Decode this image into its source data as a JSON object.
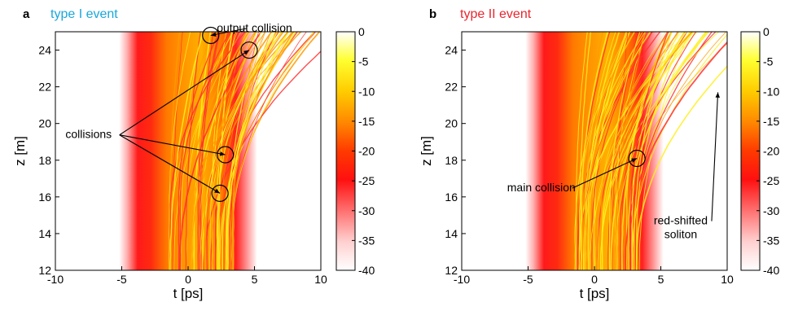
{
  "chart_data": [
    {
      "type": "heatmap",
      "panel_label": "a",
      "title": "type I event",
      "title_color": "#1aa7d9",
      "xlabel": "t [ps]",
      "ylabel": "z [m]",
      "xlim": [
        -10,
        10
      ],
      "ylim": [
        12,
        25
      ],
      "xticks": [
        -10,
        -5,
        0,
        5,
        10
      ],
      "yticks": [
        12,
        14,
        16,
        18,
        20,
        22,
        24
      ],
      "colorbar": {
        "ticks": [
          0,
          -5,
          -10,
          -15,
          -20,
          -25,
          -30,
          -35,
          -40
        ],
        "range": [
          -40,
          0
        ]
      },
      "annotations": [
        {
          "text": "output collision",
          "target": [
            1.7,
            24.8
          ],
          "label_pos": [
            5.0,
            25.0
          ]
        },
        {
          "text": "collisions",
          "targets": [
            [
              4.6,
              24.0
            ],
            [
              2.8,
              18.3
            ],
            [
              2.4,
              16.2
            ]
          ],
          "label_pos": [
            -7.5,
            19.2
          ]
        }
      ],
      "circles": [
        [
          1.7,
          24.8
        ],
        [
          4.6,
          24.0
        ],
        [
          2.8,
          18.3
        ],
        [
          2.4,
          16.2
        ]
      ]
    },
    {
      "type": "heatmap",
      "panel_label": "b",
      "title": "type II event",
      "title_color": "#e8262e",
      "xlabel": "t [ps]",
      "ylabel": "z [m]",
      "xlim": [
        -10,
        10
      ],
      "ylim": [
        12,
        25
      ],
      "xticks": [
        -10,
        -5,
        0,
        5,
        10
      ],
      "yticks": [
        12,
        14,
        16,
        18,
        20,
        22,
        24
      ],
      "colorbar": {
        "ticks": [
          0,
          -5,
          -10,
          -15,
          -20,
          -25,
          -30,
          -35,
          -40
        ],
        "range": [
          -40,
          0
        ]
      },
      "annotations": [
        {
          "text": "main collision",
          "target": [
            3.2,
            18.1
          ],
          "label_pos": [
            -4.0,
            16.3
          ]
        },
        {
          "text": "red-shifted\nsoliton",
          "target": [
            9.3,
            21.7
          ],
          "label_pos": [
            6.5,
            14.5
          ]
        }
      ],
      "circles": [
        [
          3.2,
          18.1
        ]
      ]
    }
  ]
}
